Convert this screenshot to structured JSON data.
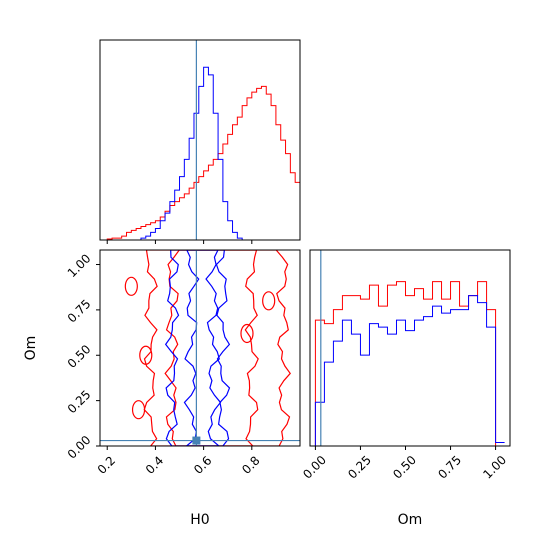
{
  "chart_data": {
    "type": "corner",
    "parameters": [
      "H0",
      "Om"
    ],
    "truth": {
      "H0": 0.57,
      "Om": 0.03
    },
    "colors": {
      "red": "#ff0000",
      "blue": "#0000ff",
      "truth": "#4682b4"
    },
    "panels": [
      {
        "id": "hist_H0",
        "type": "histogram",
        "xlim": [
          0.17,
          1.0
        ],
        "bin_edges": [
          0.17,
          0.2,
          0.22,
          0.24,
          0.26,
          0.28,
          0.3,
          0.32,
          0.34,
          0.36,
          0.38,
          0.4,
          0.42,
          0.44,
          0.46,
          0.48,
          0.5,
          0.52,
          0.54,
          0.56,
          0.58,
          0.6,
          0.62,
          0.64,
          0.66,
          0.68,
          0.7,
          0.72,
          0.74,
          0.76,
          0.78,
          0.8,
          0.82,
          0.84,
          0.86,
          0.88,
          0.9,
          0.92,
          0.94,
          0.96,
          0.98,
          1.0
        ],
        "series": [
          {
            "color": "red",
            "counts": [
              0,
              0.005,
              0.01,
              0.01,
              0.02,
              0.04,
              0.05,
              0.06,
              0.07,
              0.08,
              0.09,
              0.1,
              0.12,
              0.15,
              0.18,
              0.2,
              0.22,
              0.24,
              0.27,
              0.3,
              0.33,
              0.36,
              0.39,
              0.42,
              0.45,
              0.5,
              0.55,
              0.6,
              0.64,
              0.7,
              0.74,
              0.77,
              0.79,
              0.8,
              0.76,
              0.7,
              0.6,
              0.52,
              0.45,
              0.35,
              0.3
            ]
          },
          {
            "color": "blue",
            "counts": [
              0,
              0,
              0,
              0,
              0,
              0,
              0,
              0,
              0.01,
              0.02,
              0.04,
              0.06,
              0.1,
              0.14,
              0.2,
              0.26,
              0.33,
              0.42,
              0.53,
              0.66,
              0.8,
              0.9,
              0.86,
              0.66,
              0.42,
              0.2,
              0.1,
              0.04,
              0.01,
              0,
              0,
              0,
              0,
              0,
              0,
              0,
              0,
              0,
              0,
              0,
              0
            ]
          }
        ]
      },
      {
        "id": "contour_H0_Om",
        "type": "contour",
        "xlim": [
          0.17,
          1.0
        ],
        "ylim": [
          0.0,
          1.08
        ],
        "xticks": [
          "0.2",
          "0.4",
          "0.6",
          "0.8"
        ],
        "yticks": [
          "0.00",
          "0.25",
          "0.50",
          "0.75",
          "1.00"
        ],
        "xlabel": "H0",
        "ylabel": "Om",
        "series": [
          {
            "color": "red",
            "bands": [
              [
                0.38,
                0.8
              ],
              [
                0.47,
                0.93
              ]
            ]
          },
          {
            "color": "blue",
            "bands": [
              [
                0.47,
                0.68
              ],
              [
                0.55,
                0.64
              ]
            ]
          }
        ]
      },
      {
        "id": "hist_Om",
        "type": "histogram",
        "xlim": [
          -0.03,
          1.08
        ],
        "xticks": [
          "0.00",
          "0.25",
          "0.50",
          "0.75",
          "1.00"
        ],
        "xlabel": "Om",
        "bin_edges": [
          0.0,
          0.05,
          0.1,
          0.15,
          0.2,
          0.25,
          0.3,
          0.35,
          0.4,
          0.45,
          0.5,
          0.55,
          0.6,
          0.65,
          0.7,
          0.75,
          0.8,
          0.85,
          0.9,
          0.95,
          1.0,
          1.05
        ],
        "series": [
          {
            "color": "red",
            "counts": [
              0.72,
              0.7,
              0.78,
              0.86,
              0.86,
              0.84,
              0.92,
              0.8,
              0.92,
              0.94,
              0.86,
              0.9,
              0.84,
              0.94,
              0.84,
              0.94,
              0.8,
              0.86,
              0.94,
              0.78,
              0.0
            ]
          },
          {
            "color": "blue",
            "counts": [
              0.25,
              0.48,
              0.6,
              0.72,
              0.64,
              0.52,
              0.7,
              0.68,
              0.64,
              0.72,
              0.66,
              0.72,
              0.74,
              0.8,
              0.76,
              0.78,
              0.78,
              0.86,
              0.82,
              0.68,
              0.02
            ]
          }
        ]
      }
    ]
  }
}
